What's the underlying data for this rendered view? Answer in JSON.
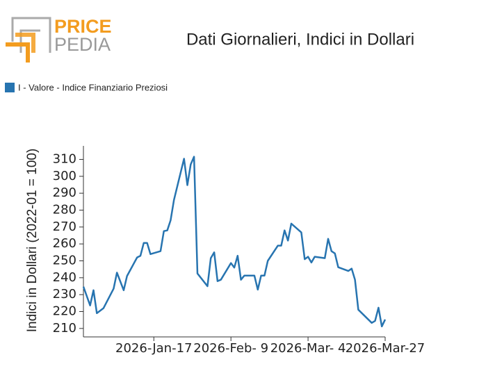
{
  "logo": {
    "top": "PRICE",
    "bottom": "PEDIA"
  },
  "chart_data": {
    "type": "line",
    "title": "Dati Giornalieri, Indici in Dollari",
    "y_label": "Indici in Dollari (2022-01 = 100)",
    "x": [
      "2025-12-27",
      "2025-12-29",
      "2025-12-30",
      "2025-12-31",
      "2026-01-02",
      "2026-01-05",
      "2026-01-06",
      "2026-01-08",
      "2026-01-09",
      "2026-01-12",
      "2026-01-13",
      "2026-01-14",
      "2026-01-15",
      "2026-01-16",
      "2026-01-19",
      "2026-01-20",
      "2026-01-21",
      "2026-01-22",
      "2026-01-23",
      "2026-01-26",
      "2026-01-27",
      "2026-01-28",
      "2026-01-29",
      "2026-01-30",
      "2026-02-02",
      "2026-02-03",
      "2026-02-04",
      "2026-02-05",
      "2026-02-06",
      "2026-02-09",
      "2026-02-10",
      "2026-02-11",
      "2026-02-12",
      "2026-02-13",
      "2026-02-16",
      "2026-02-17",
      "2026-02-18",
      "2026-02-19",
      "2026-02-20",
      "2026-02-23",
      "2026-02-24",
      "2026-02-25",
      "2026-02-26",
      "2026-02-27",
      "2026-03-02",
      "2026-03-03",
      "2026-03-04",
      "2026-03-05",
      "2026-03-06",
      "2026-03-09",
      "2026-03-10",
      "2026-03-11",
      "2026-03-12",
      "2026-03-13",
      "2026-03-16",
      "2026-03-17",
      "2026-03-18",
      "2026-03-19",
      "2026-03-23",
      "2026-03-24",
      "2026-03-25",
      "2026-03-26",
      "2026-03-27"
    ],
    "series": [
      {
        "name": "I - Valore - Indice Finanziario Preziosi",
        "color": "#2774b0",
        "values": [
          234.7,
          223.6,
          232.6,
          219,
          222,
          233.5,
          243,
          232.6,
          241,
          252,
          253,
          260.6,
          260.6,
          254,
          255.7,
          267.6,
          268,
          274,
          286,
          310.4,
          294.8,
          307,
          311.6,
          242.5,
          235,
          251.6,
          255,
          238,
          238.8,
          248.7,
          246,
          253,
          238.8,
          241.3,
          241.3,
          233,
          241.3,
          241.3,
          250,
          259,
          259,
          268,
          262,
          272,
          266.8,
          251,
          252.4,
          249,
          252.4,
          251.6,
          263,
          255.7,
          254.4,
          246.2,
          244,
          245.4,
          238.8,
          221.1,
          213.3,
          214.5,
          222.3,
          211.2,
          215.3
        ]
      }
    ],
    "xlim": [
      "2025-12-27",
      "2026-03-27"
    ],
    "xticks": [
      {
        "value": "2026-01-17",
        "label": "2026-Jan-17"
      },
      {
        "value": "2026-02-09",
        "label": "2026-Feb- 9"
      },
      {
        "value": "2026-03-04",
        "label": "2026-Mar- 4"
      },
      {
        "value": "2026-03-27",
        "label": "2026-Mar-27"
      }
    ],
    "ylim": [
      205,
      318
    ],
    "yticks": [
      210,
      220,
      230,
      240,
      250,
      260,
      270,
      280,
      290,
      300,
      310
    ]
  }
}
